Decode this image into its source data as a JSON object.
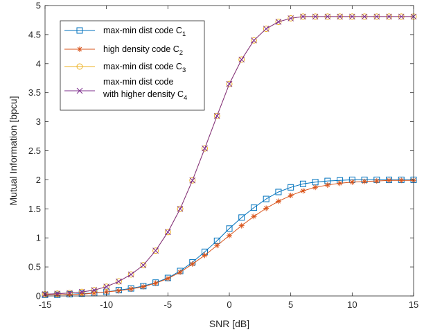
{
  "chart_data": {
    "type": "line",
    "xlabel": "SNR [dB]",
    "ylabel": "Mutual Information [bpcu]",
    "xlim": [
      -15,
      15
    ],
    "ylim": [
      0,
      5
    ],
    "xticks": [
      -15,
      -10,
      -5,
      0,
      5,
      10,
      15
    ],
    "yticks": [
      0,
      0.5,
      1,
      1.5,
      2,
      2.5,
      3,
      3.5,
      4,
      4.5,
      5
    ],
    "grid": false,
    "legend_position": "top-left",
    "x": [
      -15,
      -14,
      -13,
      -12,
      -11,
      -10,
      -9,
      -8,
      -7,
      -6,
      -5,
      -4,
      -3,
      -2,
      -1,
      0,
      1,
      2,
      3,
      4,
      5,
      6,
      7,
      8,
      9,
      10,
      11,
      12,
      13,
      14,
      15
    ],
    "series": [
      {
        "name": "max-min dist code C",
        "subscript": "1",
        "color": "#0072BD",
        "marker": "square",
        "values": [
          0.02,
          0.02,
          0.03,
          0.04,
          0.05,
          0.07,
          0.1,
          0.13,
          0.17,
          0.23,
          0.31,
          0.43,
          0.58,
          0.76,
          0.95,
          1.16,
          1.35,
          1.52,
          1.67,
          1.79,
          1.87,
          1.93,
          1.96,
          1.98,
          1.99,
          2.0,
          2.0,
          2.0,
          2.0,
          2.0,
          2.0
        ]
      },
      {
        "name": "high density code C",
        "subscript": "2",
        "color": "#D95319",
        "marker": "asterisk",
        "values": [
          0.02,
          0.02,
          0.03,
          0.03,
          0.05,
          0.07,
          0.09,
          0.12,
          0.16,
          0.22,
          0.3,
          0.41,
          0.55,
          0.7,
          0.87,
          1.04,
          1.21,
          1.37,
          1.51,
          1.63,
          1.73,
          1.81,
          1.87,
          1.91,
          1.94,
          1.96,
          1.97,
          1.98,
          1.99,
          1.99,
          1.99
        ]
      },
      {
        "name": "max-min dist code C",
        "subscript": "3",
        "color": "#EDB120",
        "marker": "circle",
        "values": [
          0.03,
          0.04,
          0.05,
          0.07,
          0.1,
          0.16,
          0.25,
          0.37,
          0.53,
          0.78,
          1.1,
          1.5,
          1.99,
          2.54,
          3.1,
          3.65,
          4.07,
          4.4,
          4.6,
          4.72,
          4.78,
          4.81,
          4.81,
          4.81,
          4.81,
          4.81,
          4.81,
          4.81,
          4.81,
          4.81,
          4.81
        ]
      },
      {
        "name_lines": [
          "max-min dist code",
          "with higher density C"
        ],
        "subscript": "4",
        "color": "#7E2F8E",
        "marker": "x",
        "values": [
          0.03,
          0.04,
          0.05,
          0.07,
          0.1,
          0.16,
          0.25,
          0.37,
          0.53,
          0.78,
          1.1,
          1.5,
          1.99,
          2.54,
          3.1,
          3.65,
          4.07,
          4.4,
          4.6,
          4.72,
          4.78,
          4.81,
          4.81,
          4.81,
          4.81,
          4.81,
          4.81,
          4.81,
          4.81,
          4.81,
          4.81
        ]
      }
    ]
  }
}
